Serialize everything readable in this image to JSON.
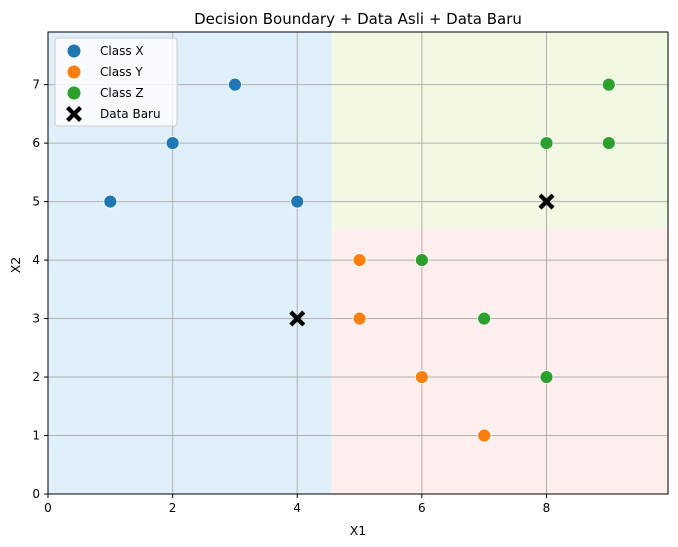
{
  "chart_data": {
    "type": "scatter",
    "title": "Decision Boundary + Data Asli + Data Baru",
    "xlabel": "X1",
    "ylabel": "X2",
    "xlim": [
      0,
      9.95
    ],
    "ylim": [
      0,
      7.9
    ],
    "xticks": [
      0,
      2,
      4,
      6,
      8
    ],
    "yticks": [
      0,
      1,
      2,
      3,
      4,
      5,
      6,
      7
    ],
    "grid": true,
    "legend_position": "top-left",
    "regions": [
      {
        "class": "Class X",
        "color": "#dff0fa",
        "x": [
          0,
          4.55
        ],
        "y": [
          0,
          7.9
        ]
      },
      {
        "class": "Class Y",
        "color": "#ffeeee",
        "x": [
          4.55,
          9.95
        ],
        "y": [
          0,
          4.55
        ]
      },
      {
        "class": "Class Z",
        "color": "#f1f9e3",
        "x": [
          4.55,
          9.95
        ],
        "y": [
          4.55,
          7.9
        ]
      }
    ],
    "series": [
      {
        "name": "Class X",
        "marker": "circle",
        "color": "#1f77b4",
        "points": [
          [
            1,
            5
          ],
          [
            2,
            6
          ],
          [
            3,
            7
          ],
          [
            4,
            5
          ]
        ]
      },
      {
        "name": "Class Y",
        "marker": "circle",
        "color": "#ff7f0e",
        "points": [
          [
            5,
            4
          ],
          [
            5,
            3
          ],
          [
            6,
            2
          ],
          [
            7,
            1
          ]
        ]
      },
      {
        "name": "Class Z",
        "marker": "circle",
        "color": "#2ca02c",
        "points": [
          [
            6,
            4
          ],
          [
            7,
            3
          ],
          [
            8,
            2
          ],
          [
            8,
            6
          ],
          [
            9,
            6
          ],
          [
            9,
            7
          ]
        ]
      },
      {
        "name": "Data Baru",
        "marker": "x-filled",
        "color": "#000000",
        "points": [
          [
            4,
            3
          ],
          [
            8,
            5
          ]
        ]
      }
    ]
  }
}
